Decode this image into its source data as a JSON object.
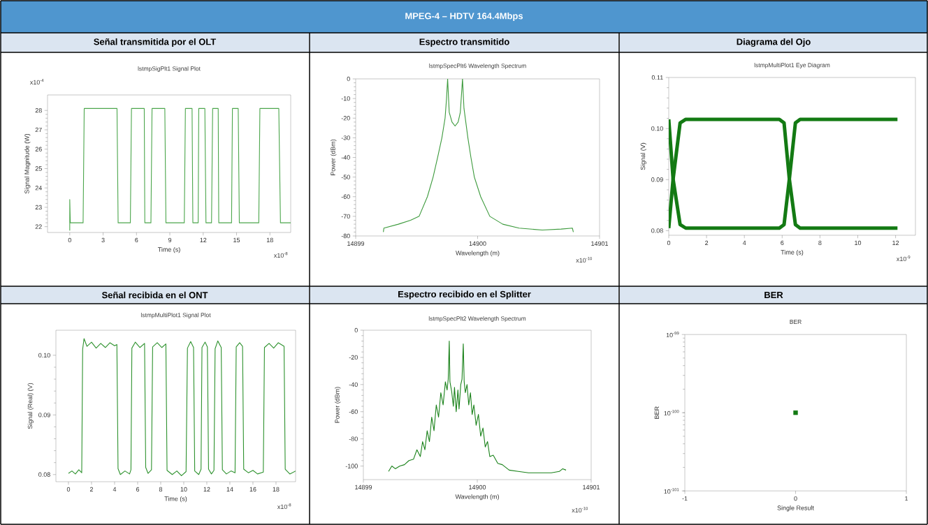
{
  "chart_data": [
    {
      "type": "line",
      "title": "Señal transmitida por el OLT",
      "subtitle": "lstmpSigPlt1 Signal Plot",
      "xlabel": "Time (s)",
      "ylabel": "Signal Magnitude (W)",
      "annotations": [
        "MPEG-4 – HDTV 164.4Mbps",
        "x10$^{-4}$",
        "x10$^{-8}$"
      ],
      "xlim": [
        -2,
        19.87
      ],
      "ylim": [
        21.7,
        28.8
      ],
      "xticks": [
        0,
        3,
        6,
        9,
        12,
        15,
        18
      ],
      "yticks": [
        22,
        23,
        24,
        25,
        26,
        27,
        28
      ],
      "series": [
        {
          "color": "#4ca64c",
          "x": [
            0,
            0,
            0.05,
            1.2,
            1.3,
            4.25,
            4.35,
            5.45,
            5.55,
            6.7,
            6.75,
            7.3,
            7.4,
            8.55,
            8.65,
            10.3,
            10.4,
            11.0,
            11.07,
            11.55,
            11.6,
            12.15,
            12.25,
            12.75,
            12.85,
            13.35,
            13.4,
            14.55,
            14.63,
            15.15,
            15.25,
            17.0,
            17.1,
            18.8,
            18.95,
            19.87
          ],
          "values": [
            21.8,
            23.4,
            22.2,
            22.2,
            28.1,
            28.1,
            22.2,
            22.2,
            28.1,
            28.1,
            22.2,
            22.2,
            28.1,
            28.1,
            22.2,
            22.2,
            28.1,
            28.1,
            22.2,
            22.2,
            28.1,
            28.1,
            22.2,
            22.2,
            28.1,
            28.1,
            22.2,
            22.2,
            28.1,
            28.1,
            22.2,
            22.2,
            28.1,
            28.1,
            22.2,
            22.2
          ]
        }
      ]
    },
    {
      "type": "line",
      "title": "Espectro transmitido",
      "subtitle": "lstmpSpecPlt6 Wavelength Spectrum",
      "xlabel": "Wavelength (m)",
      "ylabel": "Power (dBm)",
      "annotations": [
        "x10$^{-10}$"
      ],
      "xlim": [
        14899,
        14901
      ],
      "ylim": [
        -80,
        0
      ],
      "xticks": [
        14899,
        14900,
        14901
      ],
      "yticks": [
        -80,
        -70,
        -60,
        -50,
        -40,
        -30,
        -20,
        -10,
        0
      ],
      "series": [
        {
          "color": "#3c9a3c",
          "x": [
            14899.227,
            14899.231,
            14899.35,
            14899.45,
            14899.52,
            14899.588,
            14899.635,
            14899.672,
            14899.707,
            14899.733,
            14899.745,
            14899.754,
            14899.767,
            14899.79,
            14899.815,
            14899.84,
            14899.858,
            14899.876,
            14899.888,
            14899.92,
            14899.945,
            14899.973,
            14900.025,
            14900.1,
            14900.206,
            14900.34,
            14900.53,
            14900.685,
            14900.777,
            14900.785
          ],
          "values": [
            -78,
            -76,
            -74,
            -72,
            -70,
            -60,
            -50,
            -40,
            -30,
            -20,
            -10,
            0,
            -17,
            -22,
            -24,
            -22,
            -17,
            0,
            -15,
            -30,
            -40,
            -50,
            -60,
            -70,
            -74,
            -76,
            -77,
            -76.5,
            -76,
            -78
          ]
        }
      ]
    },
    {
      "type": "line",
      "title": "Diagrama del Ojo",
      "subtitle": "lstmpMultiPlot1 Eye Diagram",
      "xlabel": "Time (s)",
      "ylabel": "Signal (V)",
      "annotations": [
        "x10$^{-9}$"
      ],
      "xlim": [
        0,
        13.05
      ],
      "ylim": [
        0.0791,
        0.11
      ],
      "xticks": [
        0,
        2,
        4,
        6,
        8,
        10,
        12
      ],
      "yticks": [
        0.08,
        0.09,
        {
          "value": 0.1,
          "label": "0.10"
        },
        0.11
      ],
      "series": [
        {
          "color": "#137a13",
          "x": [
            0,
            0.23,
            0.6,
            0.9,
            5.85,
            6.1,
            6.38,
            6.7,
            6.95,
            12.1
          ],
          "values": [
            0.1018,
            0.0901,
            0.0812,
            0.0805,
            0.0805,
            0.0812,
            0.0901,
            0.1011,
            0.1018,
            0.1018
          ]
        },
        {
          "color": "#137a13",
          "x": [
            0,
            0.23,
            0.6,
            0.9,
            5.85,
            6.1,
            6.38,
            6.7,
            6.95,
            12.1
          ],
          "values": [
            0.0805,
            0.0901,
            0.1011,
            0.1018,
            0.1018,
            0.1011,
            0.0901,
            0.0812,
            0.0805,
            0.0805
          ]
        }
      ]
    },
    {
      "type": "line",
      "title": "Señal recibida en el ONT",
      "subtitle": "lstmpMultiPlot1 Signal Plot",
      "xlabel": "Time (s)",
      "ylabel": "Signal (Real) (V)",
      "annotations": [
        "x10$^{-8}$"
      ],
      "xlim": [
        -1.09,
        19.7
      ],
      "ylim": [
        0.0788,
        0.1042
      ],
      "xticks": [
        0,
        2,
        4,
        6,
        8,
        10,
        12,
        14,
        16,
        18
      ],
      "yticks": [
        0.08,
        0.09,
        {
          "value": 0.1,
          "label": "0.10"
        }
      ],
      "series": [
        {
          "color": "#2e922e",
          "x": [
            0,
            0.3,
            0.6,
            0.9,
            1.15,
            1.23,
            1.35,
            1.6,
            2.0,
            2.4,
            2.8,
            3.2,
            3.6,
            4.0,
            4.2,
            4.3,
            4.5,
            4.9,
            5.3,
            5.42,
            5.5,
            5.8,
            6.2,
            6.6,
            6.7,
            6.9,
            7.2,
            7.3,
            7.7,
            8.1,
            8.45,
            8.55,
            9.0,
            9.4,
            9.8,
            10.2,
            10.32,
            10.6,
            10.85,
            10.95,
            11.3,
            11.5,
            11.58,
            11.85,
            12.05,
            12.15,
            12.4,
            12.62,
            12.72,
            12.95,
            13.25,
            13.35,
            13.7,
            14.1,
            14.45,
            14.55,
            14.85,
            15.1,
            15.2,
            15.6,
            16.0,
            16.4,
            16.9,
            17.0,
            17.4,
            17.8,
            18.2,
            18.7,
            18.8,
            19.2,
            19.7
          ],
          "values": [
            0.0802,
            0.0806,
            0.0801,
            0.0808,
            0.0803,
            0.101,
            0.1028,
            0.1015,
            0.1022,
            0.1012,
            0.102,
            0.1013,
            0.1021,
            0.1016,
            0.1018,
            0.081,
            0.08,
            0.0806,
            0.0801,
            0.0808,
            0.1012,
            0.1022,
            0.1013,
            0.102,
            0.0812,
            0.0802,
            0.0808,
            0.1014,
            0.1021,
            0.1013,
            0.1019,
            0.0807,
            0.08,
            0.0806,
            0.0798,
            0.0805,
            0.1012,
            0.1023,
            0.1013,
            0.0806,
            0.08,
            0.0809,
            0.1013,
            0.1022,
            0.1014,
            0.0809,
            0.0801,
            0.0807,
            0.1011,
            0.1024,
            0.1013,
            0.0808,
            0.0801,
            0.0806,
            0.0803,
            0.1014,
            0.1021,
            0.1015,
            0.0809,
            0.0803,
            0.0807,
            0.0801,
            0.0804,
            0.1013,
            0.102,
            0.1012,
            0.1021,
            0.1015,
            0.0809,
            0.0801,
            0.0806
          ]
        }
      ]
    },
    {
      "type": "line",
      "title": "Espectro recibido en el Splitter",
      "subtitle": "lstmpSpecPlt2 Wavelength Spectrum",
      "xlabel": "Wavelength (m)",
      "ylabel": "Power (dBm)",
      "annotations": [
        "x10$^{-10}$"
      ],
      "xlim": [
        14899,
        14901
      ],
      "ylim": [
        -110,
        0
      ],
      "xticks": [
        14899,
        14900,
        14901
      ],
      "yticks": [
        -100,
        -80,
        -60,
        -40,
        -20,
        0
      ],
      "series": [
        {
          "color": "#1a821a",
          "x": [
            14899.221,
            14899.25,
            14899.28,
            14899.32,
            14899.36,
            14899.4,
            14899.44,
            14899.47,
            14899.5,
            14899.52,
            14899.54,
            14899.56,
            14899.58,
            14899.6,
            14899.62,
            14899.64,
            14899.66,
            14899.68,
            14899.7,
            14899.72,
            14899.735,
            14899.745,
            14899.754,
            14899.76,
            14899.775,
            14899.79,
            14899.8,
            14899.815,
            14899.83,
            14899.84,
            14899.855,
            14899.866,
            14899.877,
            14899.885,
            14899.895,
            14899.91,
            14899.925,
            14899.94,
            14899.955,
            14899.97,
            14899.99,
            14900.01,
            14900.03,
            14900.05,
            14900.07,
            14900.09,
            14900.11,
            14900.14,
            14900.18,
            14900.22,
            14900.28,
            14900.36,
            14900.45,
            14900.55,
            14900.65,
            14900.72,
            14900.75,
            14900.779
          ],
          "values": [
            -104,
            -100,
            -102,
            -100,
            -99,
            -96,
            -95,
            -88,
            -93,
            -82,
            -88,
            -74,
            -82,
            -64,
            -74,
            -55,
            -64,
            -46,
            -55,
            -38,
            -44,
            -36,
            -8,
            -38,
            -45,
            -56,
            -42,
            -60,
            -44,
            -58,
            -40,
            -36,
            -10,
            -38,
            -46,
            -40,
            -55,
            -46,
            -62,
            -55,
            -70,
            -62,
            -78,
            -72,
            -86,
            -82,
            -93,
            -92,
            -98,
            -99,
            -103,
            -104,
            -105,
            -105,
            -105,
            -104,
            -102,
            -103
          ]
        }
      ]
    },
    {
      "type": "scatter",
      "title": "BER",
      "subtitle": "BER",
      "xlabel": "Single Result",
      "ylabel": "BER",
      "log": "y",
      "marker": "square",
      "xlim": [
        -1,
        1
      ],
      "ylim": [
        1e-101,
        1e-99
      ],
      "xticks": [
        -1,
        0,
        1
      ],
      "yticks": [
        {
          "value": 1e-101,
          "label": "10$^{-101}$"
        },
        {
          "value": 1e-100,
          "label": "10$^{-100}$"
        },
        {
          "value": 1e-99,
          "label": "10$^{-99}$"
        }
      ],
      "series": [
        {
          "color": "#137a13",
          "x": [
            0
          ],
          "values": [
            1e-100
          ]
        }
      ]
    }
  ]
}
